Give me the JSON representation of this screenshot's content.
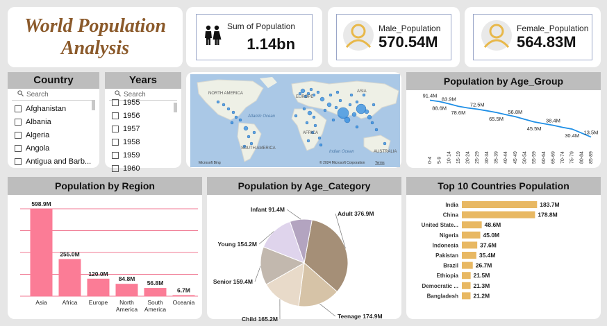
{
  "title": {
    "line1": "World Population",
    "line2": "Analysis"
  },
  "kpis": {
    "total": {
      "label": "Sum of Population",
      "value": "1.14bn"
    },
    "male": {
      "label": "Male_Population",
      "value": "570.54M"
    },
    "female": {
      "label": "Female_Population",
      "value": "564.83M"
    }
  },
  "country_slicer": {
    "title": "Country",
    "search_placeholder": "Search",
    "items": [
      "Afghanistan",
      "Albania",
      "Algeria",
      "Angola",
      "Antigua and Barb..."
    ]
  },
  "years_slicer": {
    "title": "Years",
    "search_placeholder": "Search",
    "items": [
      "1955",
      "1956",
      "1957",
      "1958",
      "1959",
      "1960"
    ]
  },
  "map": {
    "labels": [
      "NORTH AMERICA",
      "EUROPE",
      "ASIA",
      "Atlantic Ocean",
      "AFRICA",
      "SOUTH AMERICA",
      "Indian Ocean",
      "AUSTRALIA"
    ],
    "brand": "Microsoft Bing",
    "copyright": "© 2024 Microsoft Corporation",
    "terms": "Terms"
  },
  "chart_data": [
    {
      "type": "line",
      "title": "Population by Age_Group",
      "categories": [
        "0-4",
        "5-9",
        "10-14",
        "15-19",
        "20-24",
        "25-29",
        "30-34",
        "35-39",
        "40-44",
        "45-49",
        "50-54",
        "55-59",
        "60-64",
        "65-69",
        "70-74",
        "75-79",
        "80-84",
        "85-89"
      ],
      "series": [
        {
          "values": [
            91.4,
            88.6,
            83.9,
            78.6,
            75,
            72.5,
            69,
            65.5,
            61,
            56.8,
            51,
            45.5,
            42,
            38.4,
            34,
            30.4,
            22,
            13.5
          ]
        }
      ],
      "data_labels": [
        {
          "index": 0,
          "text": "91.4M"
        },
        {
          "index": 1,
          "text": "88.6M"
        },
        {
          "index": 2,
          "text": "83.9M"
        },
        {
          "index": 3,
          "text": "78.6M"
        },
        {
          "index": 5,
          "text": "72.5M"
        },
        {
          "index": 7,
          "text": "65.5M"
        },
        {
          "index": 9,
          "text": "56.8M"
        },
        {
          "index": 11,
          "text": "45.5M"
        },
        {
          "index": 13,
          "text": "38.4M"
        },
        {
          "index": 15,
          "text": "30.4M"
        },
        {
          "index": 17,
          "text": "13.5M"
        }
      ],
      "color": "#1f8fe6"
    },
    {
      "type": "bar",
      "title": "Population by Region",
      "categories": [
        "Asia",
        "Africa",
        "Europe",
        "North America",
        "South America",
        "Oceania"
      ],
      "values": [
        598.9,
        255.0,
        120.0,
        84.8,
        56.8,
        6.7
      ],
      "value_labels": [
        "598.9M",
        "255.0M",
        "120.0M",
        "84.8M",
        "56.8M",
        "6.7M"
      ],
      "ylim": [
        0,
        600
      ],
      "color": "#fb7c96"
    },
    {
      "type": "pie",
      "title": "Population by Age_Category",
      "slices": [
        {
          "name": "Adult",
          "value": 376.9,
          "label": "Adult 376.9M",
          "color": "#a58f77"
        },
        {
          "name": "Teenage",
          "value": 174.9,
          "label": "Teenage 174.9M",
          "color": "#d6c3a7"
        },
        {
          "name": "Child",
          "value": 165.2,
          "label": "Child 165.2M",
          "color": "#e8dac9"
        },
        {
          "name": "Senior",
          "value": 159.4,
          "label": "Senior 159.4M",
          "color": "#c2b8ae"
        },
        {
          "name": "Young",
          "value": 154.2,
          "label": "Young 154.2M",
          "color": "#dfd4ec"
        },
        {
          "name": "Infant",
          "value": 91.4,
          "label": "Infant 91.4M",
          "color": "#b3a4c0"
        }
      ]
    },
    {
      "type": "bar",
      "orientation": "horizontal",
      "title": "Top 10 Countries Population",
      "categories": [
        "India",
        "China",
        "United State...",
        "Nigeria",
        "Indonesia",
        "Pakistan",
        "Brazil",
        "Ethiopia",
        "Democratic ...",
        "Bangladesh"
      ],
      "values": [
        183.7,
        178.8,
        48.6,
        45.0,
        37.6,
        35.4,
        26.7,
        21.5,
        21.3,
        21.2
      ],
      "value_labels": [
        "183.7M",
        "178.8M",
        "48.6M",
        "45.0M",
        "37.6M",
        "35.4M",
        "26.7M",
        "21.5M",
        "21.3M",
        "21.2M"
      ],
      "xlim": [
        0,
        190
      ],
      "color": "#e8b863"
    }
  ]
}
